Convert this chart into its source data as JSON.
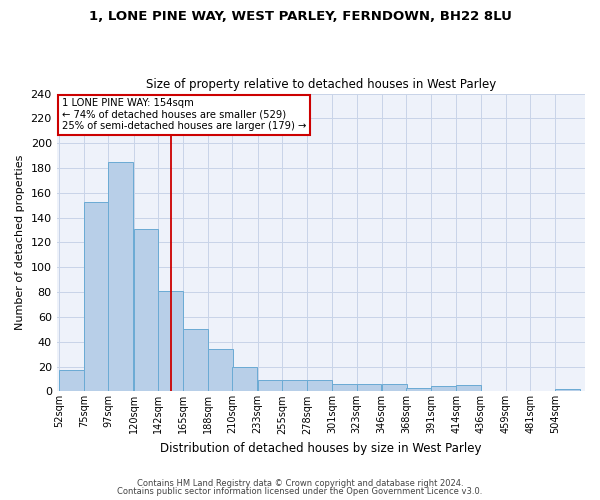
{
  "title1": "1, LONE PINE WAY, WEST PARLEY, FERNDOWN, BH22 8LU",
  "title2": "Size of property relative to detached houses in West Parley",
  "xlabel": "Distribution of detached houses by size in West Parley",
  "ylabel": "Number of detached properties",
  "bins": [
    "52sqm",
    "75sqm",
    "97sqm",
    "120sqm",
    "142sqm",
    "165sqm",
    "188sqm",
    "210sqm",
    "233sqm",
    "255sqm",
    "278sqm",
    "301sqm",
    "323sqm",
    "346sqm",
    "368sqm",
    "391sqm",
    "414sqm",
    "436sqm",
    "459sqm",
    "481sqm",
    "504sqm"
  ],
  "values": [
    17,
    153,
    185,
    131,
    81,
    50,
    34,
    20,
    9,
    9,
    9,
    6,
    6,
    6,
    3,
    4,
    5,
    0,
    0,
    0,
    2
  ],
  "bar_color": "#b8cfe8",
  "bar_edge_color": "#6aaad4",
  "vline_color": "#cc0000",
  "annotation_text": "1 LONE PINE WAY: 154sqm\n← 74% of detached houses are smaller (529)\n25% of semi-detached houses are larger (179) →",
  "annotation_box_color": "#ffffff",
  "annotation_box_edge_color": "#cc0000",
  "ylim": [
    0,
    240
  ],
  "yticks": [
    0,
    20,
    40,
    60,
    80,
    100,
    120,
    140,
    160,
    180,
    200,
    220,
    240
  ],
  "grid_color": "#c8d4e8",
  "bg_color": "#eef2fa",
  "property_sqm": 154,
  "bin_width": 23,
  "bin_starts": [
    52,
    75,
    97,
    120,
    142,
    165,
    188,
    210,
    233,
    255,
    278,
    301,
    323,
    346,
    368,
    391,
    414,
    436,
    459,
    481,
    504
  ],
  "footer1": "Contains HM Land Registry data © Crown copyright and database right 2024.",
  "footer2": "Contains public sector information licensed under the Open Government Licence v3.0."
}
